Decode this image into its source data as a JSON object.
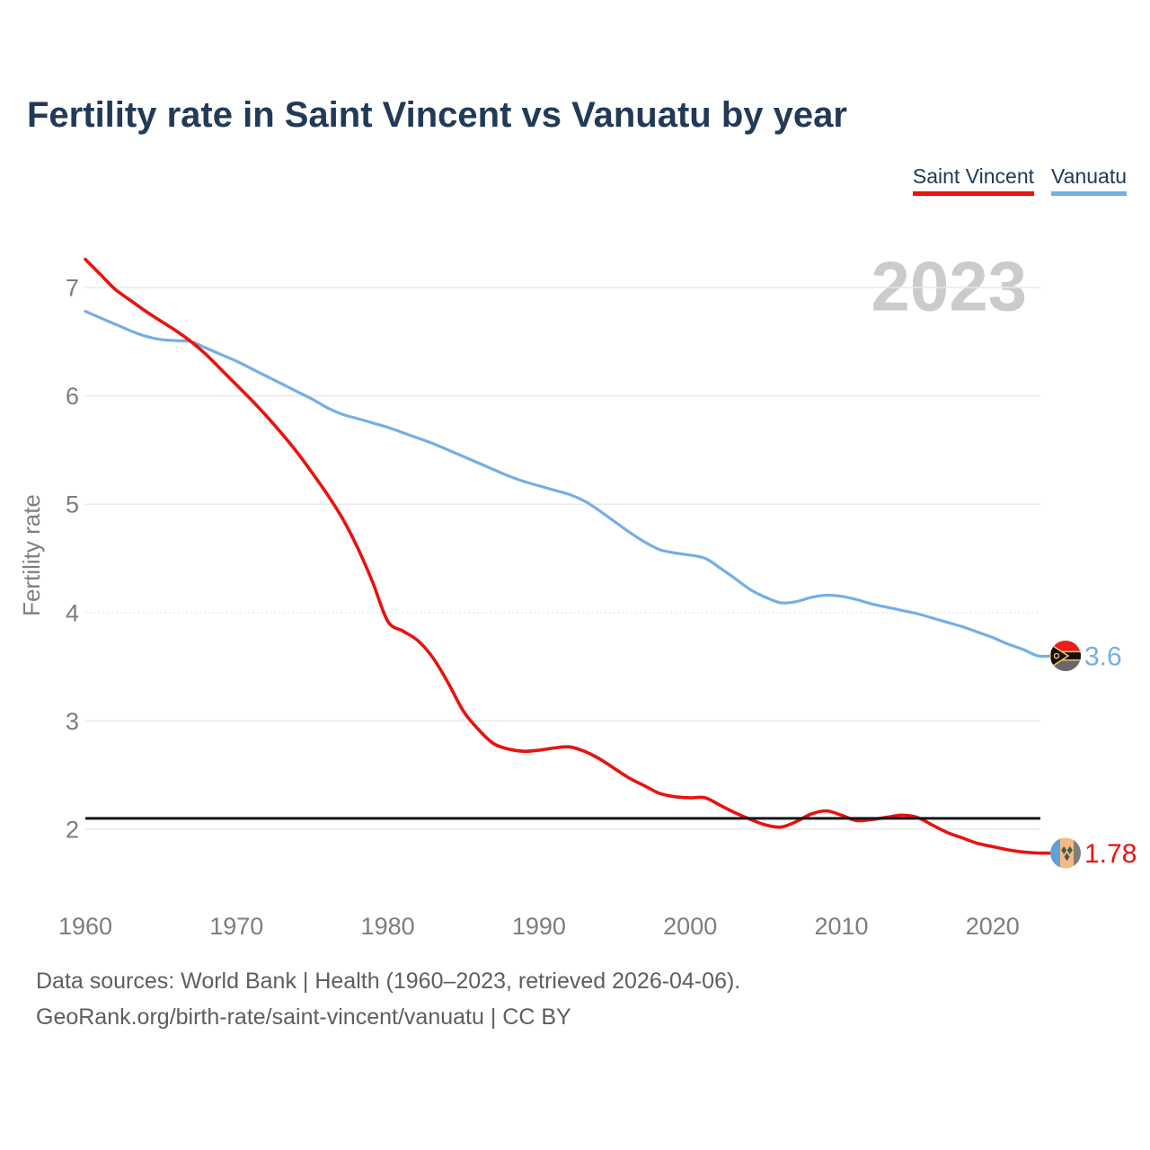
{
  "title": "Fertility rate in Saint Vincent vs Vanuatu by year",
  "legend": [
    {
      "label": "Saint Vincent",
      "color": "#e8120e"
    },
    {
      "label": "Vanuatu",
      "color": "#72afe6"
    }
  ],
  "watermark": "2023",
  "footer": {
    "line1": "Data sources: World Bank | Health (1960–2023, retrieved 2026-04-06).",
    "line2": "GeoRank.org/birth-rate/saint-vincent/vanuatu | CC BY"
  },
  "chart_data": {
    "type": "line",
    "title": "Fertility rate in Saint Vincent vs Vanuatu by year",
    "xlabel": "",
    "ylabel": "Fertility rate",
    "x_ticks": [
      1960,
      1970,
      1980,
      1990,
      2000,
      2010,
      2020
    ],
    "y_ticks": [
      2,
      3,
      4,
      5,
      6,
      7
    ],
    "xlim": [
      1960,
      2023
    ],
    "ylim": [
      1.45,
      7.4
    ],
    "grid": "horizontal",
    "legend_position": "top-right",
    "reference_line": {
      "value": 2.1,
      "color": "#15151b"
    },
    "x": [
      1960,
      1961,
      1962,
      1963,
      1964,
      1965,
      1966,
      1967,
      1968,
      1969,
      1970,
      1971,
      1972,
      1973,
      1974,
      1975,
      1976,
      1977,
      1978,
      1979,
      1980,
      1981,
      1982,
      1983,
      1984,
      1985,
      1986,
      1987,
      1988,
      1989,
      1990,
      1991,
      1992,
      1993,
      1994,
      1995,
      1996,
      1997,
      1998,
      1999,
      2000,
      2001,
      2002,
      2003,
      2004,
      2005,
      2006,
      2007,
      2008,
      2009,
      2010,
      2011,
      2012,
      2013,
      2014,
      2015,
      2016,
      2017,
      2018,
      2019,
      2020,
      2021,
      2022,
      2023
    ],
    "series": [
      {
        "name": "Saint Vincent",
        "color": "#e8120e",
        "end_value": 1.78,
        "end_label": "1.78",
        "flag": "saint-vincent",
        "values": [
          7.26,
          7.12,
          6.98,
          6.88,
          6.78,
          6.69,
          6.6,
          6.5,
          6.38,
          6.24,
          6.1,
          5.96,
          5.81,
          5.65,
          5.48,
          5.29,
          5.09,
          4.87,
          4.6,
          4.28,
          3.92,
          3.83,
          3.74,
          3.58,
          3.35,
          3.09,
          2.92,
          2.79,
          2.74,
          2.72,
          2.73,
          2.75,
          2.76,
          2.72,
          2.65,
          2.56,
          2.47,
          2.4,
          2.33,
          2.3,
          2.29,
          2.29,
          2.22,
          2.15,
          2.09,
          2.04,
          2.02,
          2.07,
          2.14,
          2.17,
          2.13,
          2.08,
          2.09,
          2.11,
          2.13,
          2.11,
          2.04,
          1.97,
          1.92,
          1.87,
          1.84,
          1.81,
          1.79,
          1.78
        ]
      },
      {
        "name": "Vanuatu",
        "color": "#72afe6",
        "end_value": 3.6,
        "end_label": "3.6",
        "flag": "vanuatu",
        "values": [
          6.78,
          6.72,
          6.66,
          6.6,
          6.55,
          6.52,
          6.51,
          6.5,
          6.44,
          6.38,
          6.32,
          6.25,
          6.18,
          6.11,
          6.04,
          5.97,
          5.89,
          5.83,
          5.79,
          5.75,
          5.71,
          5.66,
          5.61,
          5.56,
          5.5,
          5.44,
          5.38,
          5.32,
          5.26,
          5.21,
          5.17,
          5.13,
          5.09,
          5.03,
          4.94,
          4.84,
          4.74,
          4.65,
          4.58,
          4.55,
          4.53,
          4.5,
          4.41,
          4.31,
          4.21,
          4.14,
          4.09,
          4.1,
          4.14,
          4.16,
          4.15,
          4.12,
          4.08,
          4.05,
          4.02,
          3.99,
          3.95,
          3.91,
          3.87,
          3.82,
          3.77,
          3.71,
          3.66,
          3.6
        ]
      }
    ]
  }
}
